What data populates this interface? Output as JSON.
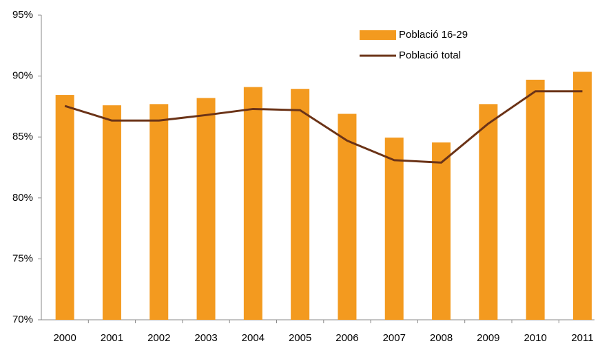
{
  "chart_data": {
    "type": "bar",
    "categories": [
      "2000",
      "2001",
      "2002",
      "2003",
      "2004",
      "2005",
      "2006",
      "2007",
      "2008",
      "2009",
      "2010",
      "2011"
    ],
    "series": [
      {
        "name": "Població 16-29",
        "type": "bar",
        "color": "#f39a1f",
        "values": [
          88.45,
          87.6,
          87.7,
          88.2,
          89.1,
          88.95,
          86.9,
          84.95,
          84.55,
          87.7,
          89.7,
          90.35
        ]
      },
      {
        "name": "Població total",
        "type": "line",
        "color": "#6b3317",
        "values": [
          87.55,
          86.35,
          86.35,
          86.8,
          87.3,
          87.2,
          84.7,
          83.1,
          82.9,
          86.1,
          88.75,
          88.75
        ]
      }
    ],
    "ylim": [
      70,
      95
    ],
    "yticks": [
      {
        "value": 70,
        "label": "70%"
      },
      {
        "value": 75,
        "label": "75%"
      },
      {
        "value": 80,
        "label": "80%"
      },
      {
        "value": 85,
        "label": "85%"
      },
      {
        "value": 90,
        "label": "90%"
      },
      {
        "value": 95,
        "label": "95%"
      }
    ],
    "grid": false,
    "legend": "top-right"
  }
}
